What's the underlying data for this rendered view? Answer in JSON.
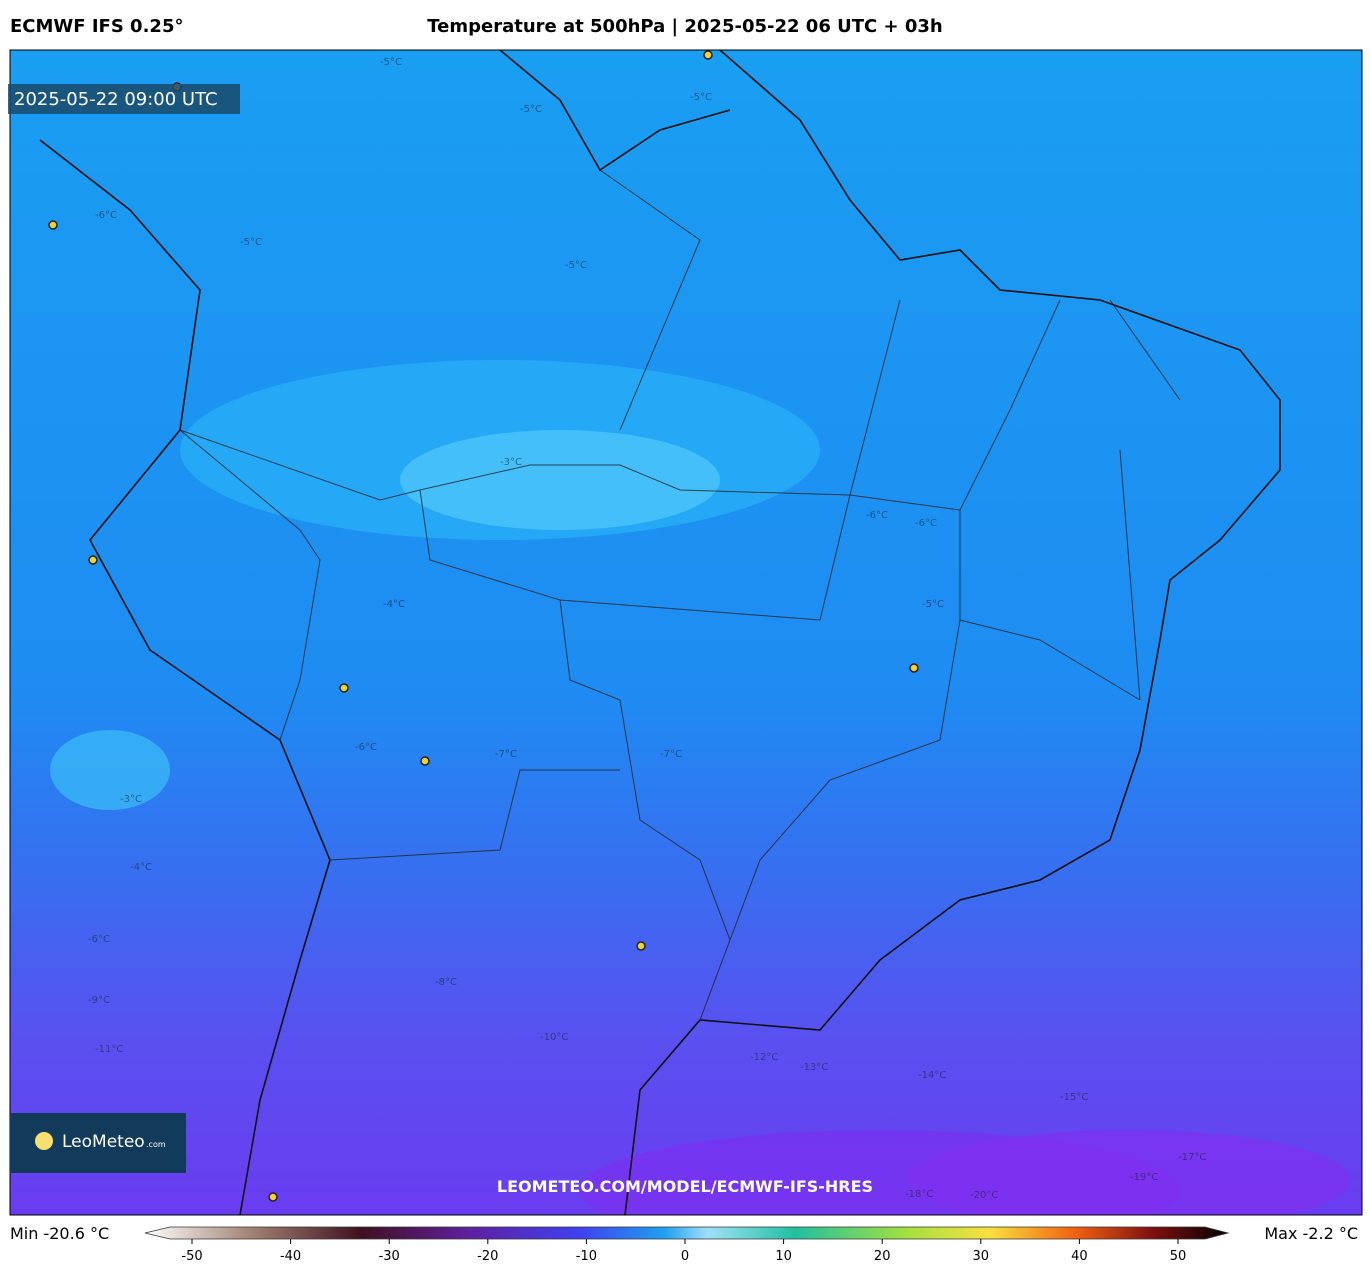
{
  "header": {
    "model": "ECMWF IFS 0.25°",
    "title": "Temperature at 500hPa | 2025-05-22 06 UTC + 03h"
  },
  "map": {
    "valid_time": "2025-05-22 09:00 UTC",
    "watermark": "LEOMETEO.COM/MODEL/ECMWF-IFS-HRES",
    "logo": {
      "name": "LeoMeteo",
      "suffix": ".com"
    },
    "contour_labels": [
      "-5°C",
      "-5°C",
      "-6°C",
      "-5°C",
      "-5°C",
      "-5°C",
      "-3°C",
      "-4°C",
      "-6°C",
      "-7°C",
      "-6°C",
      "-5°C",
      "-6°C",
      "-7°C",
      "-3°C",
      "-4°C",
      "-6°C",
      "-8°C",
      "-9°C",
      "-10°C",
      "-11°C",
      "-12°C",
      "-13°C",
      "-14°C",
      "-15°C",
      "-17°C",
      "-18°C",
      "-19°C",
      "-20°C"
    ]
  },
  "footer": {
    "min": "Min -20.6 °C",
    "max": "Max -2.2 °C",
    "colorbar_ticks": [
      -50,
      -40,
      -30,
      -20,
      -10,
      0,
      10,
      20,
      30,
      40,
      50
    ]
  }
}
